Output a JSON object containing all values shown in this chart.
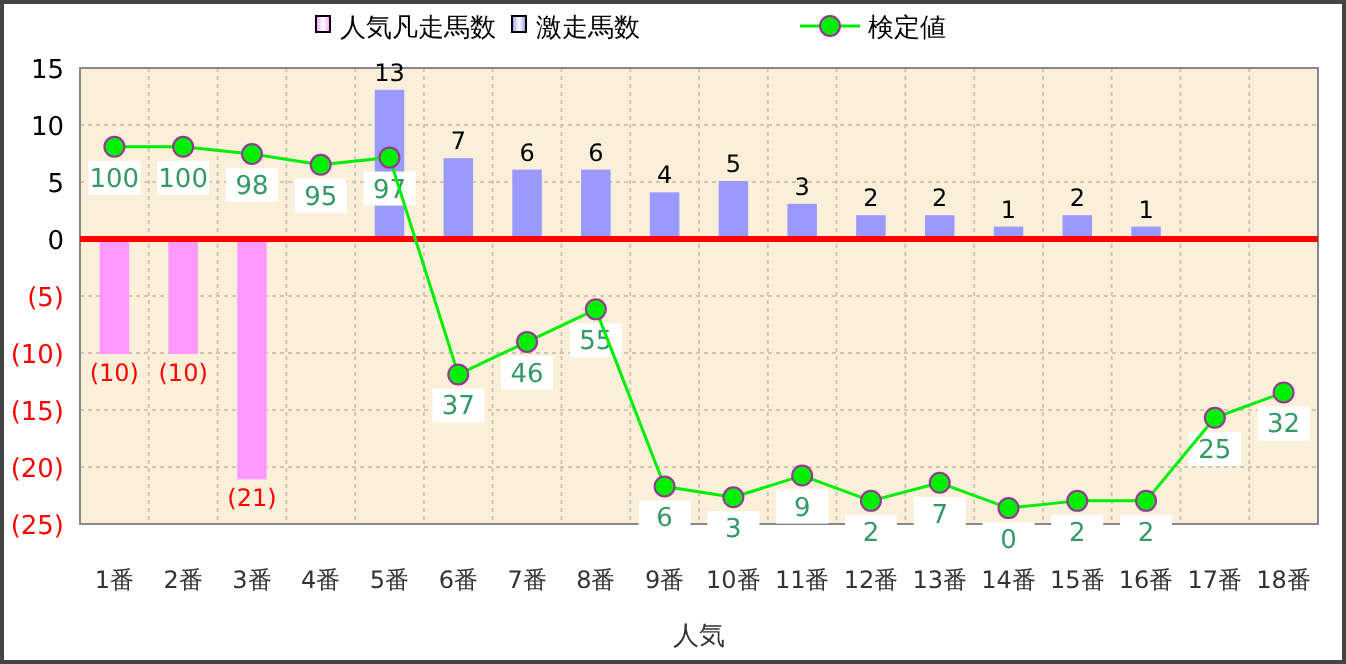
{
  "chart_data": {
    "type": "bar",
    "xlabel": "人気",
    "categories": [
      "1番",
      "2番",
      "3番",
      "4番",
      "5番",
      "6番",
      "7番",
      "8番",
      "9番",
      "10番",
      "11番",
      "12番",
      "13番",
      "14番",
      "15番",
      "16番",
      "17番",
      "18番"
    ],
    "ylim": [
      -25,
      15
    ],
    "yticks": [
      15,
      10,
      5,
      0,
      {
        "value": -5,
        "label": "(5)"
      },
      {
        "value": -10,
        "label": "(10)"
      },
      {
        "value": -15,
        "label": "(15)"
      },
      {
        "value": -20,
        "label": "(20)"
      },
      {
        "value": -25,
        "label": "(25)"
      }
    ],
    "y2lim": [
      -4.4,
      121.8
    ],
    "grid": true,
    "legend": "top",
    "ref_lines": [
      {
        "axis": "y",
        "value": 0,
        "color": "#ff0000"
      }
    ],
    "series": [
      {
        "name": "人気凡走馬数",
        "color": "#ff99ff",
        "values": [
          -10,
          -10,
          -21,
          null,
          null,
          null,
          null,
          null,
          null,
          null,
          null,
          null,
          null,
          null,
          null,
          null,
          null,
          null
        ],
        "value_labels": [
          "(10)",
          "(10)",
          "(21)",
          null,
          null,
          null,
          null,
          null,
          null,
          null,
          null,
          null,
          null,
          null,
          null,
          null,
          null,
          null
        ]
      },
      {
        "name": "激走馬数",
        "color": "#9999ff",
        "values": [
          null,
          null,
          null,
          null,
          13,
          7,
          6,
          6,
          4,
          5,
          3,
          2,
          2,
          1,
          2,
          1,
          null,
          null
        ],
        "value_labels": [
          null,
          null,
          null,
          null,
          "13",
          "7",
          "6",
          "6",
          "4",
          "5",
          "3",
          "2",
          "2",
          "1",
          "2",
          "1",
          null,
          null
        ]
      },
      {
        "name": "検定値",
        "type": "line",
        "axis": "y2",
        "marker": "circle",
        "color": "#00ee00",
        "data_labels": true,
        "values": [
          100,
          100,
          98,
          95,
          97,
          37,
          46,
          55,
          6,
          3,
          9,
          2,
          7,
          0,
          2,
          2,
          25,
          32
        ]
      }
    ]
  }
}
